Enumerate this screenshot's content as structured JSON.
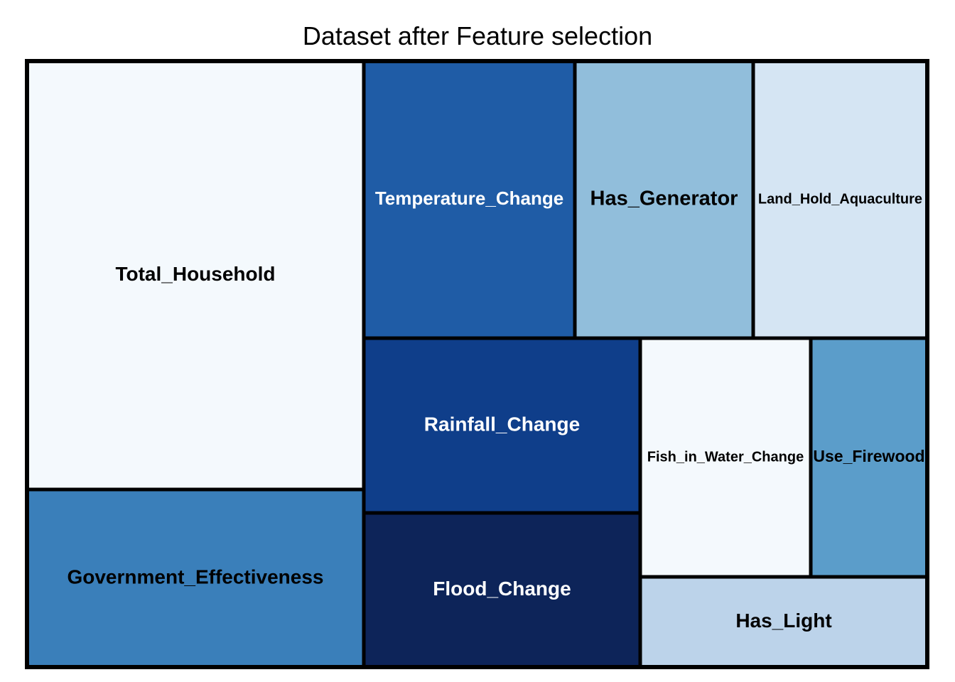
{
  "chart_data": {
    "type": "treemap",
    "title": "Dataset after Feature selection",
    "tiles": [
      {
        "label": "Total_Household",
        "color": "#f4f9fd",
        "text_color": "#000000"
      },
      {
        "label": "Government_Effectiveness",
        "color": "#3a7fba",
        "text_color": "#000000"
      },
      {
        "label": "Temperature_Change",
        "color": "#1f5ca6",
        "text_color": "#ffffff"
      },
      {
        "label": "Has_Generator",
        "color": "#91bedb",
        "text_color": "#000000"
      },
      {
        "label": "Land_Hold_Aquaculture",
        "color": "#d5e5f3",
        "text_color": "#000000"
      },
      {
        "label": "Rainfall_Change",
        "color": "#0f3e8a",
        "text_color": "#ffffff"
      },
      {
        "label": "Flood_Change",
        "color": "#0d2459",
        "text_color": "#ffffff"
      },
      {
        "label": "Fish_in_Water_Change",
        "color": "#f4f9fd",
        "text_color": "#000000"
      },
      {
        "label": "Use_Firewood",
        "color": "#5b9dca",
        "text_color": "#000000"
      },
      {
        "label": "Has_Light",
        "color": "#bcd3ea",
        "text_color": "#000000"
      }
    ]
  }
}
